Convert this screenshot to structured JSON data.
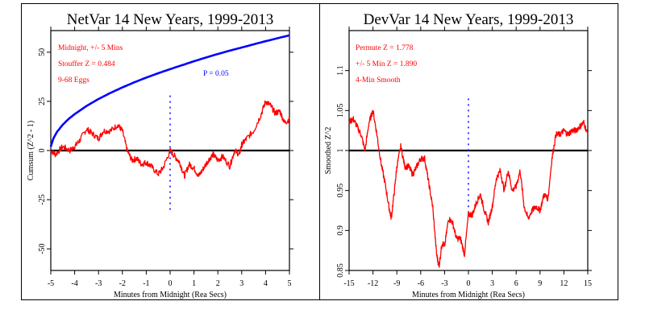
{
  "chart_data": [
    {
      "type": "line",
      "title": "NetVar 14 New Years, 1999-2013",
      "xlabel": "Minutes from Midnight (Rea Secs)",
      "ylabel": "Cumsum (Z^2 - 1)",
      "xlim": [
        -5,
        5
      ],
      "ylim": [
        -61,
        61
      ],
      "xticks": [
        -5,
        -4,
        -3,
        -2,
        -1,
        0,
        1,
        2,
        3,
        4,
        5
      ],
      "yticks": [
        -50,
        -25,
        0,
        25,
        50
      ],
      "reference_line_y": 0,
      "marker_x": 0,
      "marker_range": [
        -31,
        28
      ],
      "annotations": [
        {
          "text": "Midnight, +/- 5 Mins",
          "color": "#ff0000"
        },
        {
          "text": "Stouffer Z = 0.484",
          "color": "#ff0000"
        },
        {
          "text": "9-68 Eggs",
          "color": "#ff0000"
        },
        {
          "text": "P = 0.05",
          "color": "#0000ff"
        }
      ],
      "series": [
        {
          "color": "#ff0000",
          "x": [
            -5,
            -4.8,
            -4.5,
            -4.2,
            -4,
            -3.8,
            -3.5,
            -3.3,
            -3,
            -2.8,
            -2.5,
            -2.2,
            -2,
            -1.8,
            -1.6,
            -1.4,
            -1.2,
            -1,
            -0.8,
            -0.5,
            -0.3,
            0,
            0.2,
            0.4,
            0.6,
            0.8,
            1,
            1.2,
            1.4,
            1.6,
            1.8,
            2,
            2.2,
            2.5,
            2.7,
            2.9,
            3,
            3.2,
            3.5,
            3.8,
            4,
            4.2,
            4.4,
            4.6,
            4.8,
            5
          ],
          "y": [
            0,
            -2,
            2,
            0,
            2,
            5,
            11,
            9,
            6,
            10,
            10,
            13,
            10,
            0,
            -5,
            -4,
            -7,
            -6,
            -8,
            -12,
            -9,
            0,
            -3,
            -6,
            -13,
            -7,
            -9,
            -13,
            -9,
            -5,
            -2,
            -5,
            -3,
            -8,
            0,
            -2,
            3,
            6,
            10,
            18,
            25,
            23,
            19,
            20,
            14,
            16
          ]
        },
        {
          "color": "#0000ff",
          "x": [
            -5,
            -4.9,
            -4.75,
            -4.5,
            -4.25,
            -4,
            -3.5,
            -3,
            -2.5,
            -2,
            -1.5,
            -1,
            -0.5,
            0,
            0.5,
            1,
            1.5,
            2,
            2.5,
            3,
            3.5,
            4,
            4.5,
            5
          ],
          "y": [
            2,
            5.9,
            9.3,
            13.1,
            16.1,
            18.5,
            22.7,
            26.2,
            29.3,
            32.1,
            34.7,
            37.1,
            39.3,
            41.4,
            43.4,
            45.4,
            47.3,
            49.1,
            50.8,
            52.4,
            54.0,
            55.6,
            57.1,
            58.6
          ]
        }
      ]
    },
    {
      "type": "line",
      "title": "DevVar 14 New Years, 1999-2013",
      "xlabel": "Minutes from Midnight (Rea Secs)",
      "ylabel": "Smoothed Z^2",
      "xlim": [
        -15,
        15
      ],
      "ylim": [
        0.85,
        1.15
      ],
      "xticks": [
        -15,
        -12,
        -9,
        -6,
        -3,
        0,
        3,
        6,
        9,
        12,
        15
      ],
      "yticks": [
        0.85,
        0.9,
        0.95,
        1,
        1.05,
        1.1
      ],
      "reference_line_y": 1,
      "marker_x": 0,
      "marker_range": [
        0.92,
        1.065
      ],
      "annotations": [
        {
          "text": "Permute Z = 1.778",
          "color": "#ff0000"
        },
        {
          "text": "+/- 5 Min Z = 1.890",
          "color": "#ff0000"
        },
        {
          "text": "4-Min Smooth",
          "color": "#ff0000"
        }
      ],
      "series": [
        {
          "color": "#ff0000",
          "x": [
            -15,
            -14.5,
            -14,
            -13.5,
            -13,
            -12.5,
            -12,
            -11.5,
            -11,
            -10.5,
            -10,
            -9.7,
            -9.3,
            -9,
            -8.5,
            -8,
            -7.5,
            -7,
            -6.5,
            -6,
            -5.5,
            -5,
            -4.5,
            -4,
            -3.7,
            -3.3,
            -3,
            -2.5,
            -2,
            -1.5,
            -1,
            -0.5,
            0,
            0.5,
            1,
            1.5,
            2,
            2.5,
            3,
            3.5,
            4,
            4.5,
            5,
            5.5,
            6,
            6.5,
            7,
            7.5,
            8,
            8.5,
            9,
            9.5,
            10,
            10.5,
            11,
            11.5,
            12,
            12.5,
            13,
            13.5,
            14,
            14.5,
            15
          ],
          "y": [
            1.035,
            1.04,
            1.03,
            1.02,
            1.0,
            1.035,
            1.05,
            1.02,
            0.985,
            0.96,
            0.93,
            0.915,
            0.95,
            0.98,
            1.005,
            0.98,
            0.98,
            0.97,
            0.98,
            0.99,
            0.99,
            0.96,
            0.93,
            0.87,
            0.855,
            0.885,
            0.88,
            0.915,
            0.91,
            0.89,
            0.89,
            0.87,
            0.92,
            0.92,
            0.935,
            0.945,
            0.925,
            0.91,
            0.93,
            0.965,
            0.975,
            0.95,
            0.975,
            0.95,
            0.955,
            0.975,
            0.93,
            0.915,
            0.925,
            0.93,
            0.925,
            0.945,
            0.94,
            0.99,
            1.02,
            1.02,
            1.025,
            1.02,
            1.025,
            1.025,
            1.03,
            1.035,
            1.02
          ]
        }
      ]
    }
  ]
}
